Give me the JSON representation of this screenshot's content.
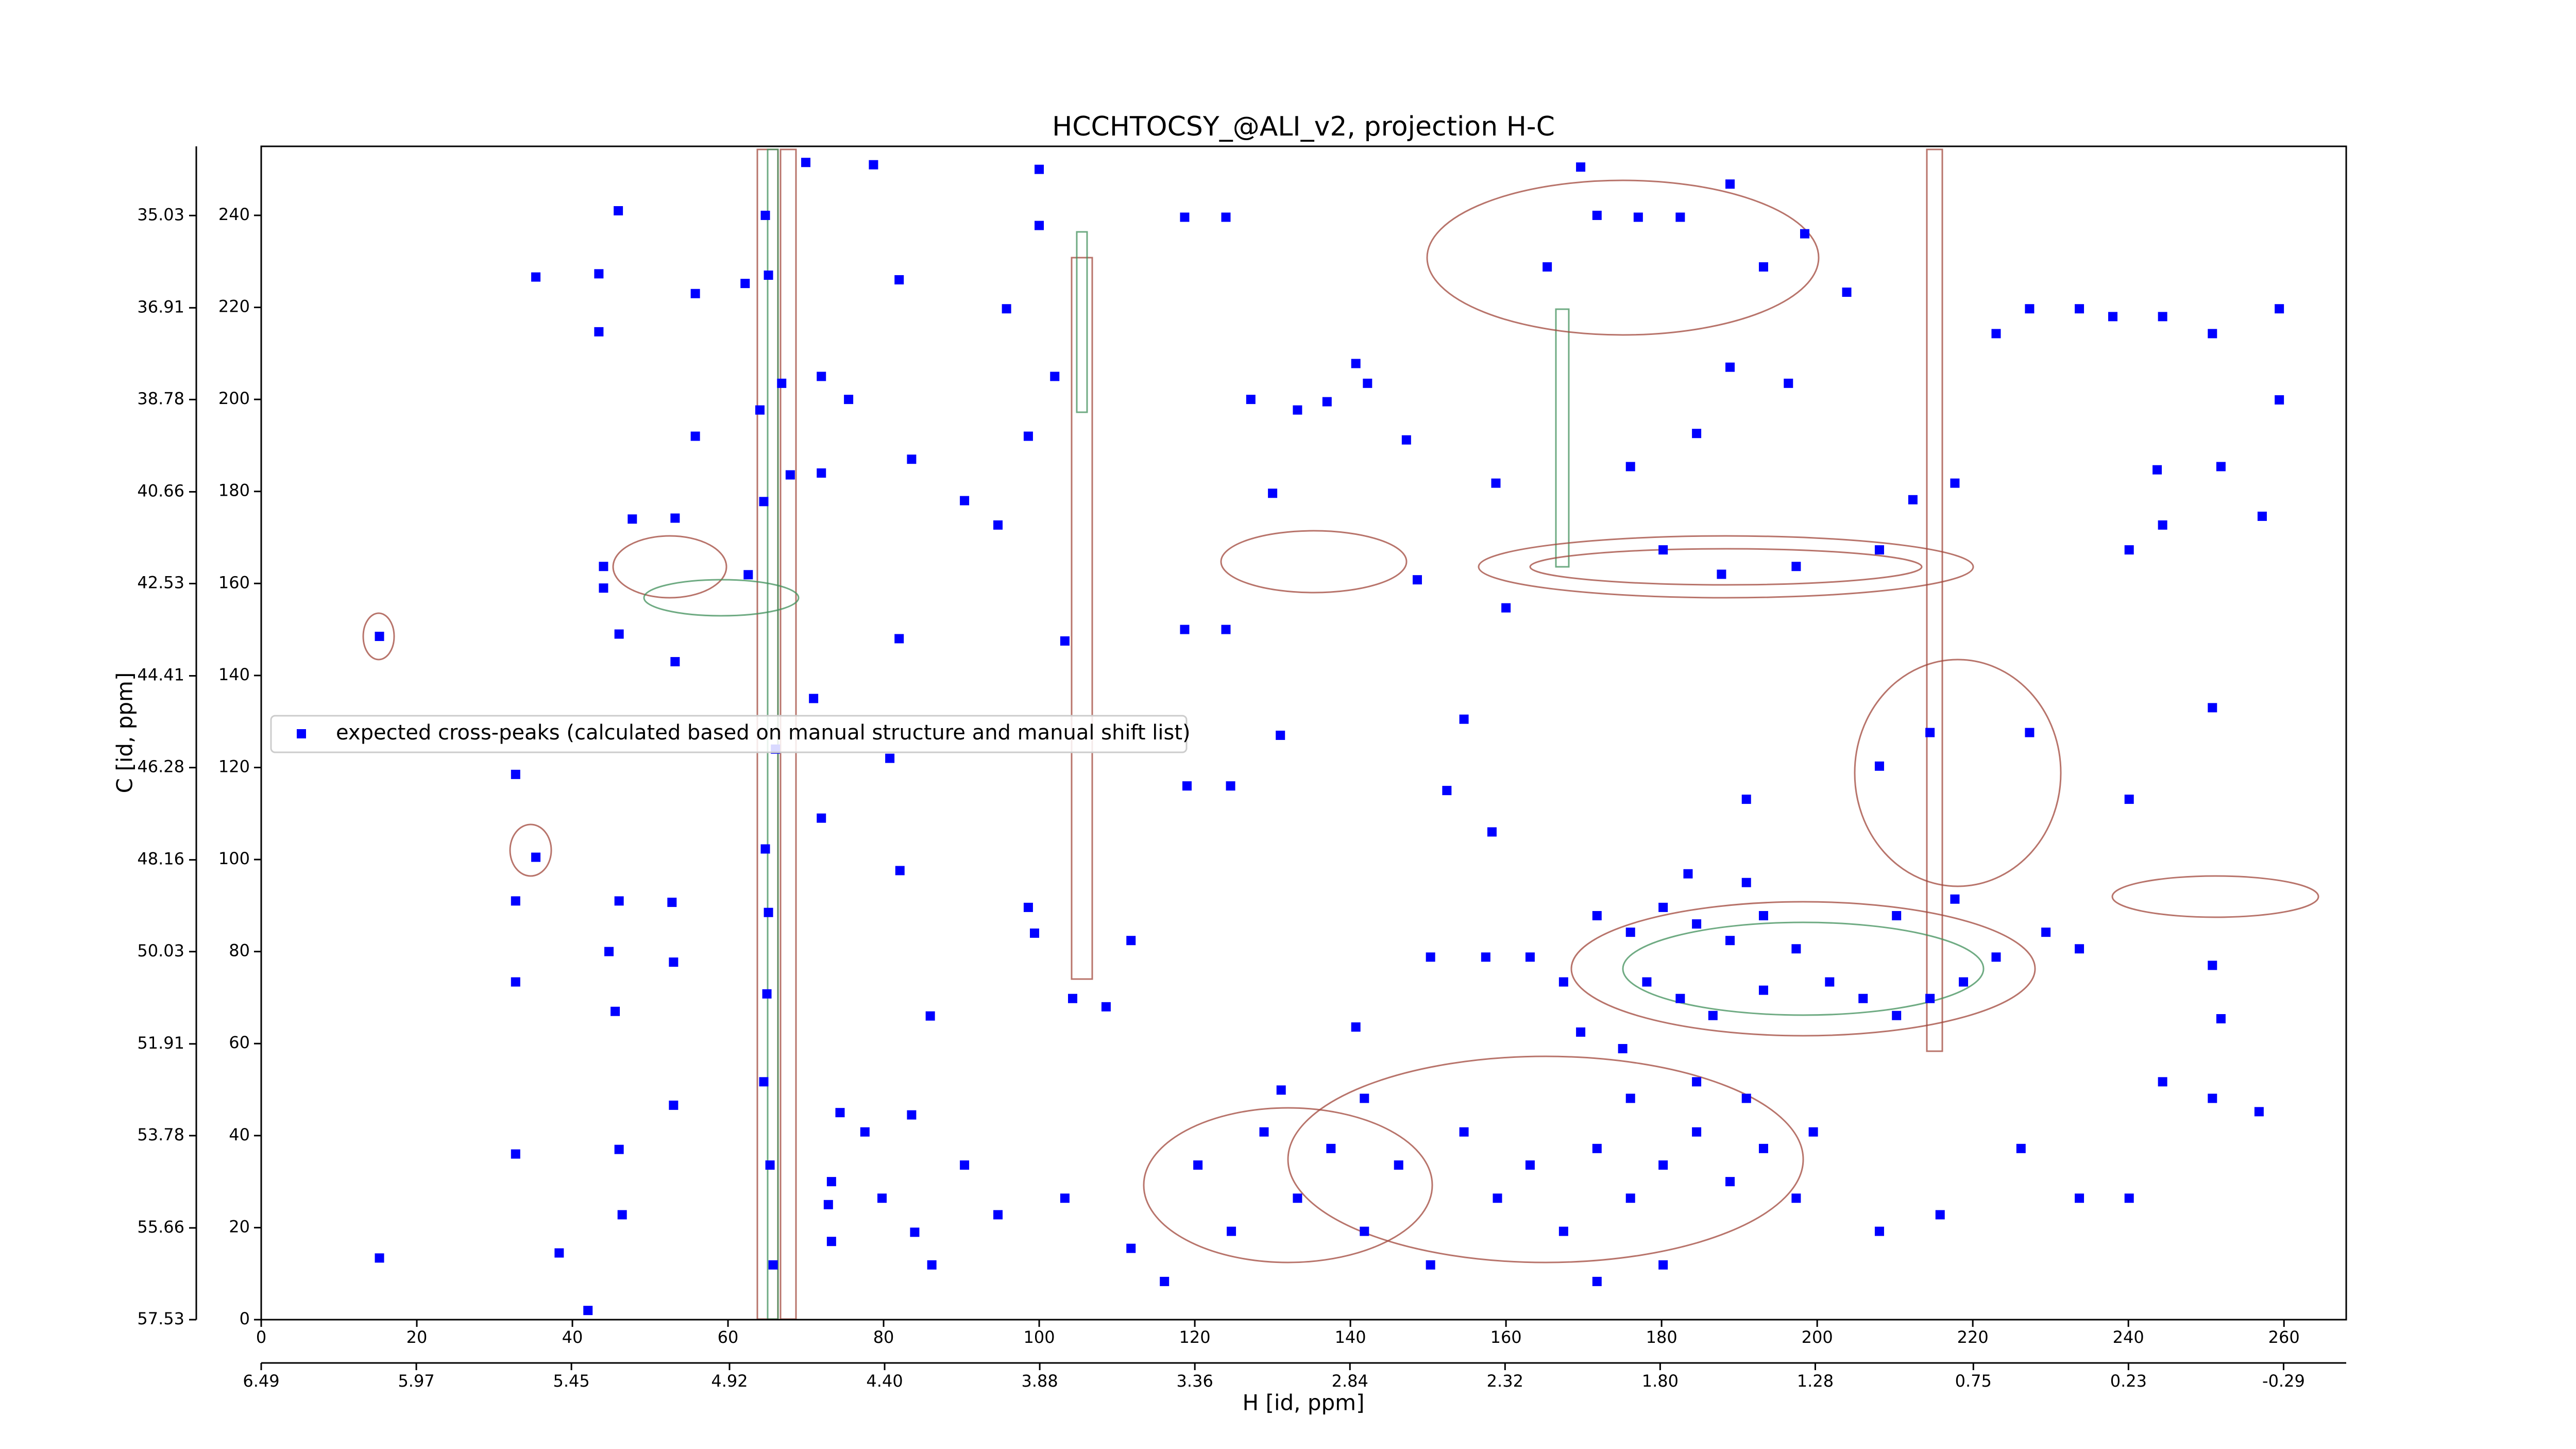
{
  "chart_data": {
    "type": "scatter",
    "title": "HCCHTOCSY_@ALI_v2, projection H-C",
    "x_label": "H [id, ppm]",
    "y_label": "C [id, ppm]",
    "xlim": [
      0,
      268
    ],
    "ylim": [
      0,
      255
    ],
    "xticks": [
      0,
      20,
      40,
      60,
      80,
      100,
      120,
      140,
      160,
      180,
      200,
      220,
      240,
      260
    ],
    "yticks": [
      0,
      20,
      40,
      60,
      80,
      100,
      120,
      140,
      160,
      180,
      200,
      220,
      240
    ],
    "x2lim": [
      6.49,
      -0.5
    ],
    "x2ticks": [
      6.49,
      5.97,
      5.45,
      4.92,
      {
        "value": 4.4,
        "label": "4.40"
      },
      3.88,
      3.36,
      2.84,
      2.32,
      {
        "value": 1.8,
        "label": "1.80"
      },
      1.28,
      0.75,
      0.23,
      -0.29
    ],
    "y2lim": [
      57.53,
      33.62
    ],
    "y2ticks": [
      57.53,
      55.66,
      53.78,
      51.91,
      50.03,
      48.16,
      46.28,
      44.41,
      42.53,
      40.66,
      38.78,
      36.91,
      35.03
    ],
    "legend": "center left",
    "series": [
      {
        "name": "expected cross-peaks (calculated based on manual structure and manual shift list)",
        "color": "#0000ff",
        "x": [
          15.2,
          15.2,
          35.3,
          43.4,
          43.4,
          45.9,
          32.7,
          35.3,
          32.7,
          32.7,
          32.7,
          38.3,
          42,
          44,
          44,
          46,
          47.7,
          53.2,
          53.2,
          53,
          55.8,
          55.8,
          46,
          44.7,
          45.5,
          46,
          46.4,
          53,
          52.8,
          64.8,
          65.2,
          64.1,
          64.6,
          62.6,
          66.1,
          64.8,
          65.2,
          65,
          64.6,
          65.4,
          65.8,
          62.2,
          66.9,
          68,
          70,
          72,
          75.5,
          72,
          71,
          72,
          74.4,
          72.9,
          73.3,
          78.7,
          82,
          83.6,
          82,
          80.8,
          82.1,
          86,
          84,
          83.6,
          90.4,
          94.7,
          95.8,
          100,
          100,
          102,
          98.6,
          98.6,
          99.4,
          103.3,
          104.3,
          108.6,
          111.8,
          118.7,
          124,
          118.7,
          124,
          119,
          124.6,
          127.2,
          131,
          130,
          133.2,
          137,
          140.7,
          142.2,
          147.2,
          148.6,
          140.7,
          150.3,
          152.4,
          157.4,
          158.2,
          154.6,
          158.7,
          160,
          165.3,
          169.6,
          171.7,
          177,
          182.4,
          188.8,
          193.1,
          198.4,
          203.8,
          188.8,
          196.3,
          184.5,
          176,
          180.2,
          187.7,
          197.3,
          208,
          212.3,
          217.7,
          223,
          227.3,
          233.7,
          238,
          244.4,
          250.8,
          251.9,
          259.4,
          259.4,
          257.2,
          243.7,
          240.1,
          244.4,
          250.8,
          240.1,
          227.3,
          214.5,
          208,
          190.9,
          171.7,
          176,
          180.2,
          184.5,
          188.8,
          193.1,
          197.3,
          201.6,
          205.9,
          210.2,
          214.5,
          218.8,
          223,
          229.4,
          233.7,
          178.1,
          182.4,
          186.6,
          193.1,
          167.4,
          163.1,
          169.6,
          175,
          183.4,
          190.9,
          210.2,
          217.7,
          120.4,
          124.7,
          128.9,
          133.2,
          137.5,
          141.8,
          146.2,
          150.3,
          154.6,
          158.9,
          163.1,
          167.4,
          171.7,
          176,
          180.2,
          184.5,
          188.8,
          193.1,
          197.3,
          180.2,
          171.7,
          184.5,
          176,
          190.9,
          199.5,
          131.1,
          141.8,
          116.1,
          111.8,
          103.3,
          94.7,
          90.4,
          86.2,
          79.8,
          77.6,
          73.3,
          244.4,
          250.8,
          251.9,
          256.8,
          250.8,
          233.7,
          240.1,
          226.2,
          215.8,
          208
        ],
        "y": [
          148.5,
          13.4,
          226.6,
          227.3,
          214.7,
          241,
          118.5,
          100.5,
          91,
          73.4,
          36,
          14.5,
          2,
          163.7,
          159,
          149,
          174,
          143,
          174.2,
          46.6,
          192,
          223,
          91,
          80,
          67,
          37,
          22.8,
          77.7,
          90.7,
          240,
          227,
          197.7,
          177.8,
          161.9,
          124,
          102.3,
          88.5,
          70.8,
          51.7,
          33.6,
          11.9,
          225.2,
          203.5,
          183.6,
          251.5,
          205,
          200,
          184,
          135,
          109,
          45,
          25,
          17,
          251,
          226,
          187,
          148,
          122,
          97.6,
          66,
          19,
          44.5,
          178,
          172.7,
          219.7,
          250,
          237.8,
          205,
          192,
          89.6,
          84,
          147.5,
          69.8,
          68,
          82.4,
          239.6,
          239.6,
          150,
          150,
          116,
          116,
          200,
          127,
          179.6,
          197.7,
          199.5,
          207.8,
          203.5,
          191.2,
          160.8,
          63.6,
          78.8,
          115,
          78.8,
          106,
          130.5,
          181.8,
          154.7,
          228.8,
          250.5,
          240,
          239.6,
          239.6,
          246.8,
          228.8,
          236,
          223.3,
          207,
          203.5,
          192.6,
          185.4,
          167.3,
          162,
          163.7,
          167.3,
          178.2,
          181.8,
          214.3,
          219.7,
          219.7,
          218,
          218,
          214.3,
          185.4,
          219.7,
          199.9,
          174.6,
          184.7,
          167.3,
          172.7,
          133,
          113.1,
          127.6,
          127.6,
          120.3,
          113.1,
          87.8,
          84.2,
          89.6,
          86,
          82.4,
          87.8,
          80.6,
          73.4,
          69.8,
          66.1,
          69.8,
          73.4,
          78.8,
          84.2,
          80.6,
          73.4,
          69.8,
          66.1,
          71.6,
          73.4,
          78.8,
          62.5,
          58.9,
          96.9,
          95,
          87.8,
          91.4,
          33.6,
          19.2,
          40.8,
          26.4,
          37.2,
          19.2,
          33.6,
          11.9,
          40.8,
          26.4,
          33.6,
          19.2,
          37.2,
          26.4,
          33.6,
          40.8,
          30,
          37.2,
          26.4,
          11.9,
          8.3,
          51.7,
          48.1,
          48.1,
          40.8,
          49.9,
          48.1,
          8.3,
          15.5,
          26.4,
          22.8,
          33.6,
          11.9,
          26.4,
          40.8,
          30,
          51.7,
          48.1,
          65.4,
          45.2,
          77,
          26.4,
          26.4,
          37.2,
          22.8,
          19.2
        ]
      }
    ]
  }
}
